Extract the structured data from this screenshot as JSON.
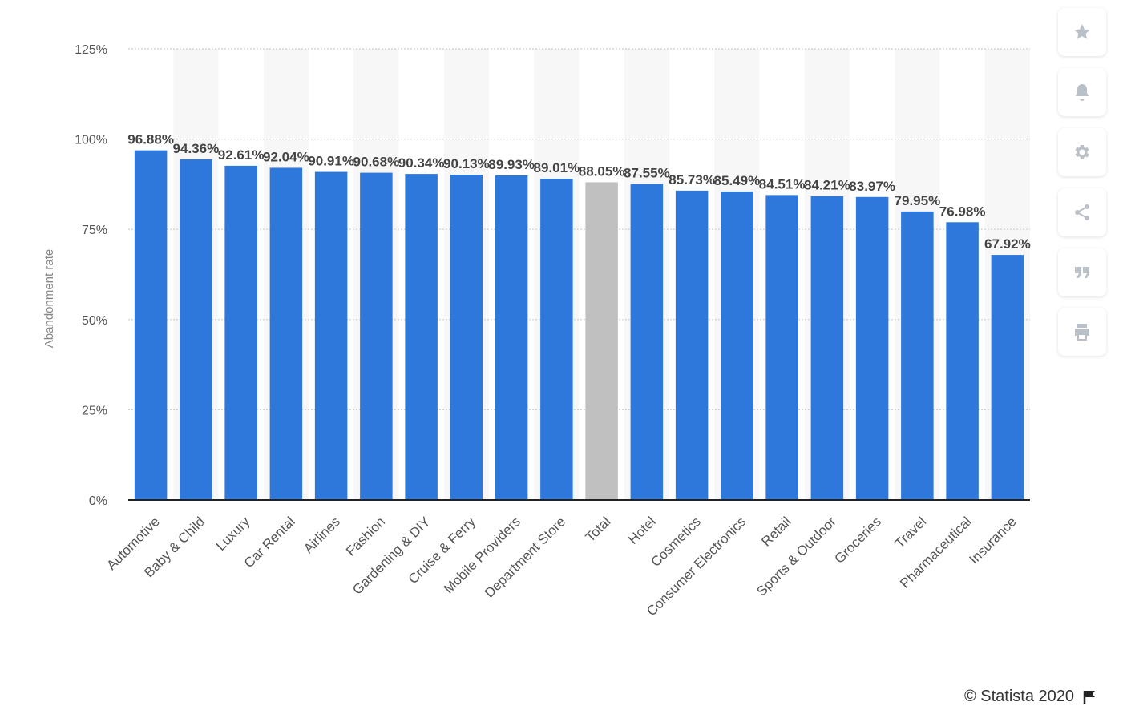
{
  "chart_data": {
    "type": "bar",
    "ylabel": "Abandonment rate",
    "xlabel": "",
    "ylim": [
      0,
      125
    ],
    "yticks": [
      0,
      25,
      50,
      75,
      100,
      125
    ],
    "ytick_labels": [
      "0%",
      "25%",
      "50%",
      "75%",
      "100%",
      "125%"
    ],
    "grid": true,
    "categories": [
      "Automotive",
      "Baby & Child",
      "Luxury",
      "Car Rental",
      "Airlines",
      "Fashion",
      "Gardening & DIY",
      "Cruise & Ferry",
      "Mobile Providers",
      "Department Store",
      "Total",
      "Hotel",
      "Cosmetics",
      "Consumer Electronics",
      "Retail",
      "Sports & Outdoor",
      "Groceries",
      "Travel",
      "Pharmaceutical",
      "Insurance"
    ],
    "values": [
      96.88,
      94.36,
      92.61,
      92.04,
      90.91,
      90.68,
      90.34,
      90.13,
      89.93,
      89.01,
      88.05,
      87.55,
      85.73,
      85.49,
      84.51,
      84.21,
      83.97,
      79.95,
      76.98,
      67.92
    ],
    "value_labels": [
      "96.88%",
      "94.36%",
      "92.61%",
      "92.04%",
      "90.91%",
      "90.68%",
      "90.34%",
      "90.13%",
      "89.93%",
      "89.01%",
      "88.05%",
      "87.55%",
      "85.73%",
      "85.49%",
      "84.51%",
      "84.21%",
      "83.97%",
      "79.95%",
      "76.98%",
      "67.92%"
    ],
    "highlight_category": "Total",
    "colors": {
      "bar": "#2e78db",
      "highlight": "#c0c0c0",
      "band": "#f7f7f8",
      "grid": "#cfcfcf",
      "axis": "#222222",
      "text": "#555555",
      "label": "#444444"
    }
  },
  "toolbar": {
    "buttons": [
      {
        "icon": "star-icon"
      },
      {
        "icon": "bell-icon"
      },
      {
        "icon": "gear-icon"
      },
      {
        "icon": "share-icon"
      },
      {
        "icon": "quote-icon"
      },
      {
        "icon": "print-icon"
      }
    ]
  },
  "footer": {
    "credit": "© Statista 2020",
    "flag_icon": "flag-icon"
  }
}
